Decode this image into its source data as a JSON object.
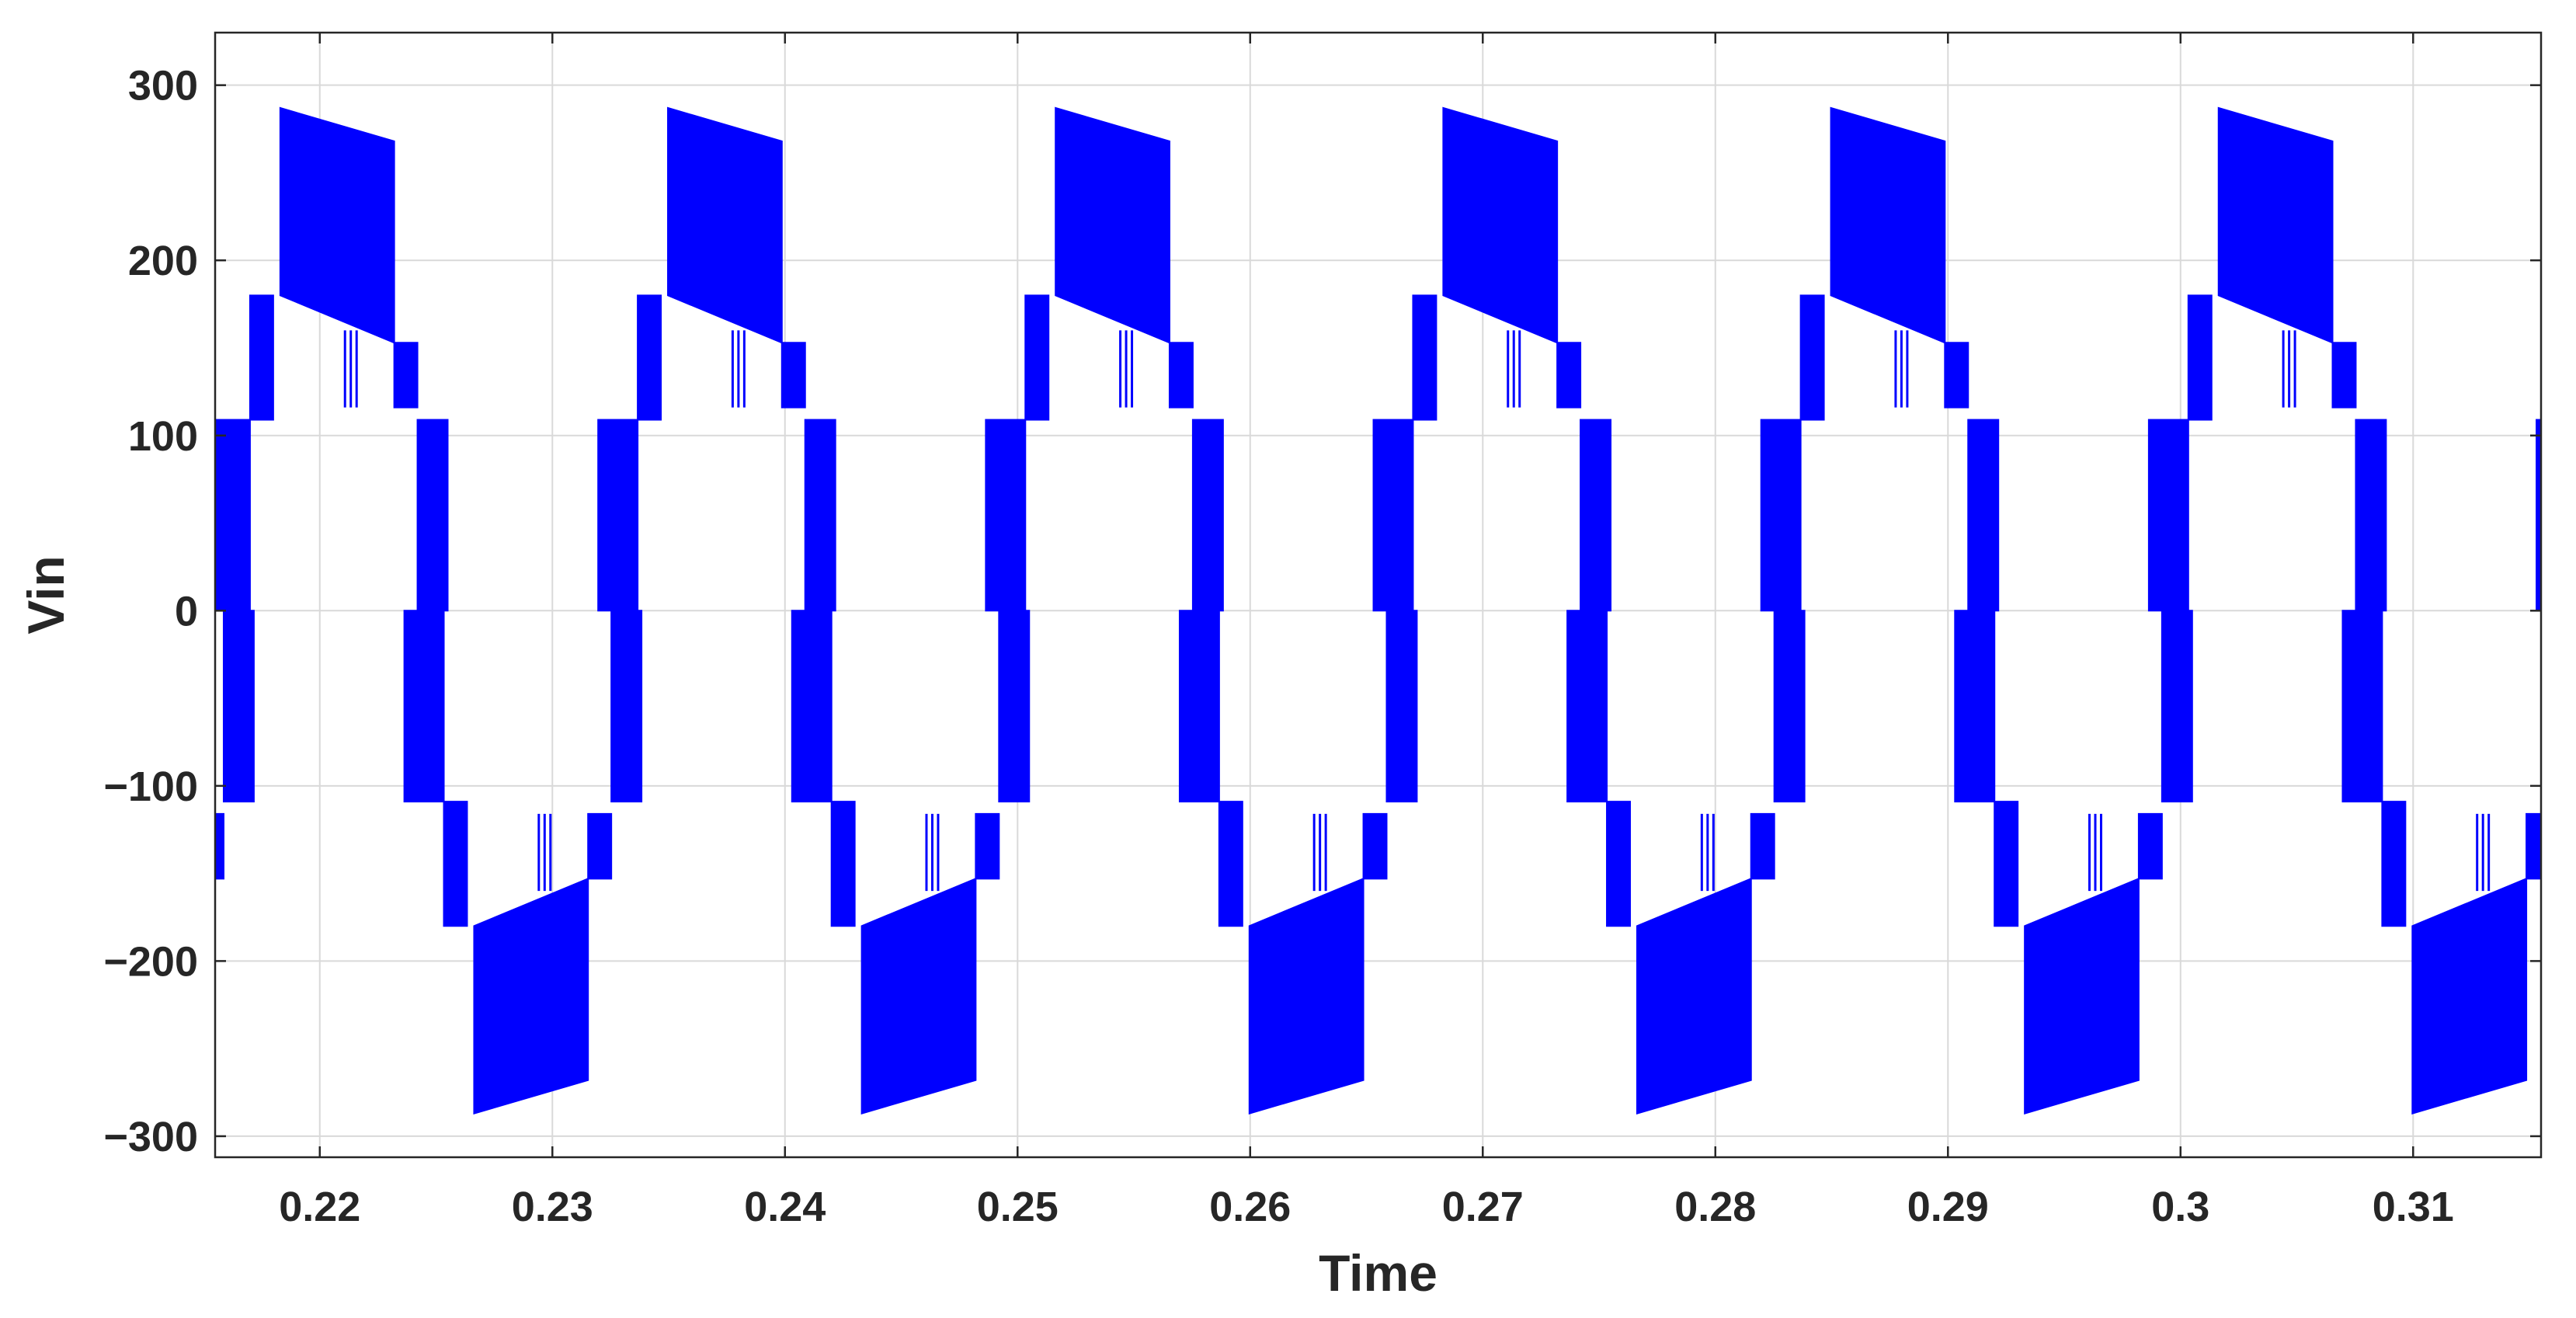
{
  "chart_data": {
    "type": "line",
    "title": "",
    "xlabel": "Time",
    "ylabel": "Vin",
    "xlim": [
      0.2155,
      0.3155
    ],
    "ylim": [
      -312,
      330
    ],
    "grid": true,
    "line_color": "#0000ff",
    "xticks": [
      0.22,
      0.23,
      0.24,
      0.25,
      0.26,
      0.27,
      0.28,
      0.29,
      0.3,
      0.31
    ],
    "xtick_labels": [
      "0.22",
      "0.23",
      "0.24",
      "0.25",
      "0.26",
      "0.27",
      "0.28",
      "0.29",
      "0.3",
      "0.31"
    ],
    "yticks": [
      300,
      200,
      100,
      0,
      -100,
      -200,
      -300
    ],
    "ytick_labels": [
      "300",
      "200",
      "100",
      "0",
      "−100",
      "−200",
      "−300"
    ],
    "waveform": {
      "period": 0.016667,
      "first_zero_crossing": 0.21525,
      "dc_levels": [
        0,
        109,
        180
      ],
      "peak_max": 287,
      "peak_min": 268,
      "peak_floor_start": 180,
      "peak_floor_end": 153,
      "step_level_after_peak": 116,
      "series": [
        {
          "segments": [
            {
              "t_start": 0.2153,
              "t_end": 0.217,
              "low": 0,
              "high": 109,
              "note": "rising 0-109"
            },
            {
              "t_start": 0.217,
              "t_end": 0.218,
              "low": 109,
              "high": 180,
              "note": "rising 109-180"
            },
            {
              "t_start": 0.2183,
              "t_end": 0.2232,
              "low_start": 180,
              "low_end": 153,
              "high_start": 287,
              "high_end": 268,
              "note": "positive peak"
            },
            {
              "t_start": 0.2232,
              "t_end": 0.2242,
              "low": 116,
              "high": 153,
              "note": "falling 153-116"
            },
            {
              "t_start": 0.2242,
              "t_end": 0.2255,
              "low": 0,
              "high": 109,
              "note": "falling 109-0"
            }
          ]
        }
      ]
    }
  }
}
